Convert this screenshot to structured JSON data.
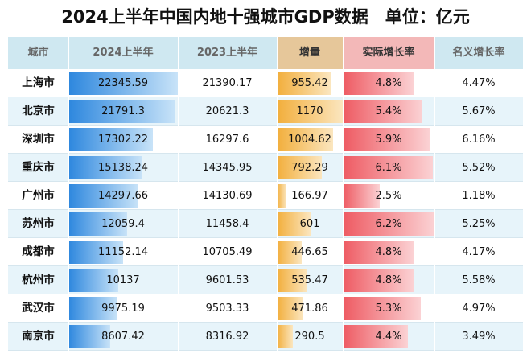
{
  "title": "2024上半年中国内地十强城市GDP数据　单位：亿元",
  "headers": {
    "city": "城市",
    "gdp2024": "2024上半年",
    "gdp2023": "2023上半年",
    "increase": "增量",
    "real_growth": "实际增长率",
    "nominal_growth": "名义增长率"
  },
  "colors": {
    "gdp2024_bar": "#2d87de",
    "increase_bar": "#f2ae3b",
    "real_growth_bar": "#ee5a62",
    "header_bg": "#cfe8f1",
    "stripe_bg": "#e7f4fa"
  },
  "chart_data": {
    "type": "table",
    "columns": [
      "城市",
      "2024上半年",
      "2023上半年",
      "增量",
      "实际增长率",
      "名义增长率"
    ],
    "rows": [
      {
        "city": "上海市",
        "gdp2024": 22345.59,
        "gdp2024_text": "22345.59",
        "gdp2023": "21390.17",
        "increase": 955.42,
        "increase_text": "955.42",
        "real": 4.8,
        "real_text": "4.8%",
        "nominal": "4.47%"
      },
      {
        "city": "北京市",
        "gdp2024": 21791.3,
        "gdp2024_text": "21791.3",
        "gdp2023": "20621.3",
        "increase": 1170,
        "increase_text": "1170",
        "real": 5.4,
        "real_text": "5.4%",
        "nominal": "5.67%"
      },
      {
        "city": "深圳市",
        "gdp2024": 17302.22,
        "gdp2024_text": "17302.22",
        "gdp2023": "16297.6",
        "increase": 1004.62,
        "increase_text": "1004.62",
        "real": 5.9,
        "real_text": "5.9%",
        "nominal": "6.16%"
      },
      {
        "city": "重庆市",
        "gdp2024": 15138.24,
        "gdp2024_text": "15138.24",
        "gdp2023": "14345.95",
        "increase": 792.29,
        "increase_text": "792.29",
        "real": 6.1,
        "real_text": "6.1%",
        "nominal": "5.52%"
      },
      {
        "city": "广州市",
        "gdp2024": 14297.66,
        "gdp2024_text": "14297.66",
        "gdp2023": "14130.69",
        "increase": 166.97,
        "increase_text": "166.97",
        "real": 2.5,
        "real_text": "2.5%",
        "nominal": "1.18%"
      },
      {
        "city": "苏州市",
        "gdp2024": 12059.4,
        "gdp2024_text": "12059.4",
        "gdp2023": "11458.4",
        "increase": 601,
        "increase_text": "601",
        "real": 6.2,
        "real_text": "6.2%",
        "nominal": "5.25%"
      },
      {
        "city": "成都市",
        "gdp2024": 11152.14,
        "gdp2024_text": "11152.14",
        "gdp2023": "10705.49",
        "increase": 446.65,
        "increase_text": "446.65",
        "real": 4.8,
        "real_text": "4.8%",
        "nominal": "4.17%"
      },
      {
        "city": "杭州市",
        "gdp2024": 10137,
        "gdp2024_text": "10137",
        "gdp2023": "9601.53",
        "increase": 535.47,
        "increase_text": "535.47",
        "real": 4.8,
        "real_text": "4.8%",
        "nominal": "5.58%"
      },
      {
        "city": "武汉市",
        "gdp2024": 9975.19,
        "gdp2024_text": "9975.19",
        "gdp2023": "9503.33",
        "increase": 471.86,
        "increase_text": "471.86",
        "real": 5.3,
        "real_text": "5.3%",
        "nominal": "4.97%"
      },
      {
        "city": "南京市",
        "gdp2024": 8607.42,
        "gdp2024_text": "8607.42",
        "gdp2023": "8316.92",
        "increase": 290.5,
        "increase_text": "290.5",
        "real": 4.4,
        "real_text": "4.4%",
        "nominal": "3.49%"
      }
    ]
  }
}
